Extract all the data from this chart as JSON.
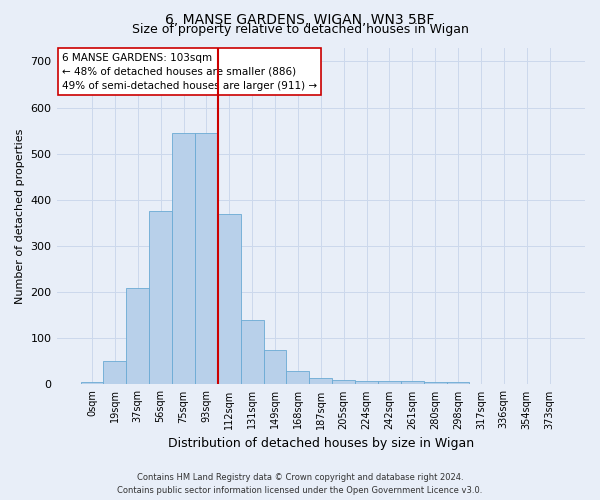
{
  "title1": "6, MANSE GARDENS, WIGAN, WN3 5BF",
  "title2": "Size of property relative to detached houses in Wigan",
  "xlabel": "Distribution of detached houses by size in Wigan",
  "ylabel": "Number of detached properties",
  "footer_line1": "Contains HM Land Registry data © Crown copyright and database right 2024.",
  "footer_line2": "Contains public sector information licensed under the Open Government Licence v3.0.",
  "annotation_line1": "6 MANSE GARDENS: 103sqm",
  "annotation_line2": "← 48% of detached houses are smaller (886)",
  "annotation_line3": "49% of semi-detached houses are larger (911) →",
  "bar_categories": [
    "0sqm",
    "19sqm",
    "37sqm",
    "56sqm",
    "75sqm",
    "93sqm",
    "112sqm",
    "131sqm",
    "149sqm",
    "168sqm",
    "187sqm",
    "205sqm",
    "224sqm",
    "242sqm",
    "261sqm",
    "280sqm",
    "298sqm",
    "317sqm",
    "336sqm",
    "354sqm",
    "373sqm"
  ],
  "bar_values": [
    5,
    50,
    210,
    375,
    545,
    545,
    370,
    140,
    75,
    30,
    15,
    10,
    7,
    7,
    7,
    5,
    5,
    2,
    0,
    0,
    2
  ],
  "bar_color": "#b8d0ea",
  "bar_edge_color": "#6aaad4",
  "vline_x": 5.5,
  "vline_color": "#cc0000",
  "ylim": [
    0,
    730
  ],
  "yticks": [
    0,
    100,
    200,
    300,
    400,
    500,
    600,
    700
  ],
  "grid_color": "#ccd8ec",
  "bg_color": "#e8eef8",
  "annotation_box_color": "#ffffff",
  "annotation_box_edge": "#cc0000",
  "title1_fontsize": 10,
  "title2_fontsize": 9,
  "ylabel_fontsize": 8,
  "xlabel_fontsize": 9,
  "tick_fontsize": 7,
  "ytick_fontsize": 8,
  "footer_fontsize": 6,
  "ann_fontsize": 7.5
}
